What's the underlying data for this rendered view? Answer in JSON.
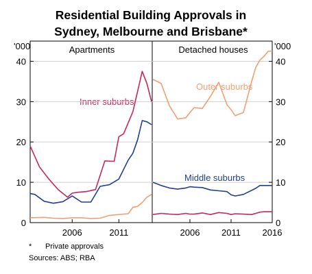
{
  "chart_data": {
    "type": "line",
    "title_lines": [
      "Residential Building Approvals in",
      "Sydney, Melbourne and Brisbane*"
    ],
    "unit_left": "'000",
    "unit_right": "'000",
    "ylim": [
      0,
      45
    ],
    "yticks": [
      0,
      10,
      20,
      30,
      40
    ],
    "footnote_marker": "*",
    "footnote_text": "Private approvals",
    "sources": "Sources: ABS; RBA",
    "colors": {
      "inner": "#c8265a",
      "middle": "#1f3f8f",
      "outer": "#f0a070",
      "axis": "#000000",
      "grid": "#d0d0d0"
    },
    "panels": [
      {
        "title": "Apartments",
        "xlim": [
          2001.5,
          2014.5
        ],
        "xticks": [
          2006,
          2011
        ],
        "series": [
          {
            "name": "Inner suburbs",
            "color_key": "inner",
            "x": [
              2001.5,
              2002.5,
              2003.5,
              2004.5,
              2005.5,
              2006,
              2006.5,
              2007.5,
              2008.5,
              2009.5,
              2010.5,
              2011,
              2011.5,
              2012.5,
              2013.5,
              2014,
              2014.5
            ],
            "y": [
              19,
              13.8,
              10.8,
              8.2,
              6.3,
              7.3,
              7.5,
              7.7,
              8.2,
              15.3,
              15.2,
              21.3,
              22,
              27.5,
              37.5,
              34.5,
              30
            ]
          },
          {
            "name": "",
            "color_key": "middle",
            "x": [
              2001.5,
              2002,
              2003,
              2004,
              2005,
              2006,
              2007,
              2008,
              2009,
              2010,
              2011,
              2012,
              2012.5,
              2013,
              2013.5,
              2014,
              2014.5
            ],
            "y": [
              7.2,
              7,
              5.3,
              4.8,
              5.2,
              6.6,
              5.1,
              5.1,
              9,
              9.4,
              10.8,
              15.5,
              17.2,
              20.5,
              25.3,
              25,
              24.3
            ]
          },
          {
            "name": "",
            "color_key": "outer",
            "x": [
              2001.5,
              2003,
              2004,
              2005,
              2006,
              2007,
              2008,
              2009,
              2010,
              2011,
              2012,
              2012.5,
              2013,
              2013.5,
              2014,
              2014.5
            ],
            "y": [
              1.2,
              1.3,
              1.1,
              1,
              1.2,
              1.2,
              1,
              1.1,
              1.8,
              2,
              2.2,
              3.8,
              4,
              5,
              6.3,
              7
            ]
          }
        ]
      },
      {
        "title": "Detached houses",
        "xlim": [
          2001.5,
          2016
        ],
        "xticks": [
          2006,
          2011,
          2016
        ],
        "series": [
          {
            "name": "Outer suburbs",
            "color_key": "outer",
            "x": [
              2001.5,
              2002.5,
              2003.5,
              2004.5,
              2005.5,
              2006,
              2006.5,
              2007.5,
              2008.5,
              2009.5,
              2010.5,
              2011,
              2011.5,
              2012.5,
              2013.5,
              2014,
              2014.5,
              2015,
              2015.5,
              2016
            ],
            "y": [
              35.5,
              34.5,
              29,
              25.7,
              26,
              27.3,
              28.5,
              28.3,
              31.3,
              34.8,
              29.2,
              28,
              26.5,
              27.3,
              35,
              38.5,
              40.3,
              41.2,
              42.5,
              42.5
            ]
          },
          {
            "name": "Middle suburbs",
            "color_key": "middle",
            "x": [
              2001.5,
              2002.5,
              2003.5,
              2004.5,
              2005.5,
              2006,
              2006.5,
              2007.5,
              2008.5,
              2009.5,
              2010.5,
              2011,
              2011.5,
              2012.5,
              2013.5,
              2014,
              2014.5,
              2015,
              2016
            ],
            "y": [
              10,
              9.2,
              8.6,
              8.3,
              8.6,
              8.9,
              8.8,
              8.7,
              8.1,
              7.9,
              7.7,
              6.9,
              6.6,
              7,
              8,
              8.5,
              9.2,
              9.2,
              9.2
            ]
          },
          {
            "name": "",
            "color_key": "inner",
            "x": [
              2001.5,
              2002.5,
              2003.5,
              2004.5,
              2005.5,
              2006,
              2006.5,
              2007.5,
              2008.5,
              2009.5,
              2010.5,
              2011,
              2011.5,
              2012.5,
              2013.5,
              2014,
              2014.5,
              2015,
              2016
            ],
            "y": [
              2,
              2.3,
              2.1,
              2,
              2.3,
              2.1,
              2.1,
              2.4,
              2,
              2.5,
              2.3,
              2,
              2.2,
              2.1,
              2,
              2.3,
              2.6,
              2.7,
              2.7
            ]
          }
        ]
      }
    ]
  }
}
